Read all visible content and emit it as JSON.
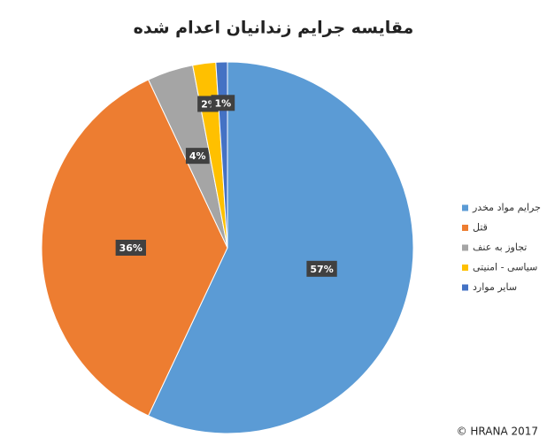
{
  "chart_data": {
    "type": "pie",
    "title": "مقایسه جرایم زندانیان اعدام شده",
    "categories": [
      "جرایم مواد مخدر",
      "قتل",
      "تجاوز به عنف",
      "سیاسی - امنیتی",
      "سایر موارد"
    ],
    "values": [
      57,
      36,
      4,
      2,
      1
    ],
    "value_labels": [
      "57%",
      "36%",
      "4%",
      "2%",
      "1%"
    ],
    "colors": [
      "#5b9bd5",
      "#ed7d31",
      "#a5a5a5",
      "#ffc000",
      "#4472c4"
    ],
    "legend": "right",
    "credit": "© HRANA 2017"
  }
}
